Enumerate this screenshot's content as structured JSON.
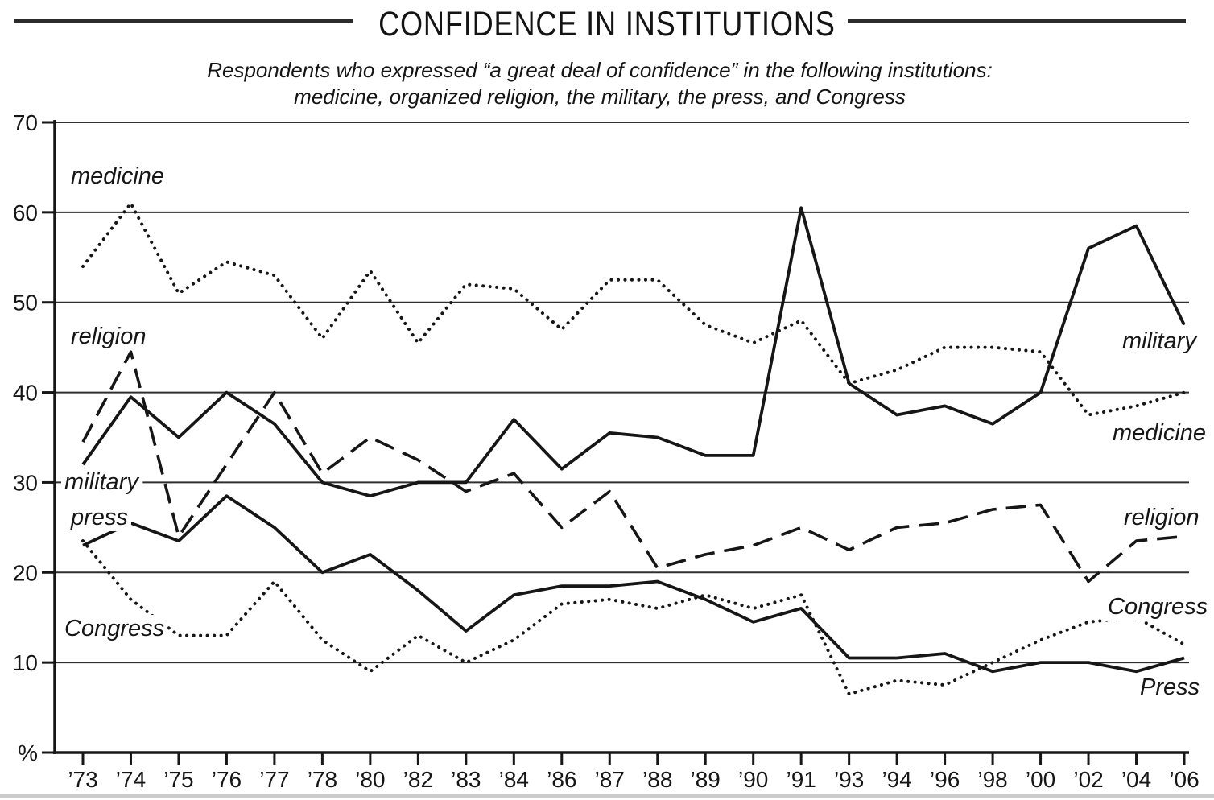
{
  "header": {
    "title": "CONFIDENCE IN INSTITUTIONS",
    "subtitle_line1": "Respondents who expressed “a great deal of confidence” in the following institutions:",
    "subtitle_line2": "medicine, organized religion, the military, the press, and Congress"
  },
  "chart_data": {
    "type": "line",
    "title": "CONFIDENCE IN INSTITUTIONS",
    "categories": [
      "’73",
      "’74",
      "’75",
      "’76",
      "’77",
      "’78",
      "’80",
      "’82",
      "’83",
      "’84",
      "’86",
      "’87",
      "’88",
      "’89",
      "’90",
      "’91",
      "’93",
      "’94",
      "’96",
      "’98",
      "’00",
      "’02",
      "’04",
      "’06"
    ],
    "series": [
      {
        "name": "medicine",
        "style": "dotted",
        "values": [
          54,
          61,
          51,
          54.5,
          53,
          46,
          53.5,
          45.5,
          52,
          51.5,
          47,
          52.5,
          52.5,
          47.5,
          45.5,
          48,
          41,
          42.5,
          45,
          45,
          44.5,
          37.5,
          38.5,
          40
        ]
      },
      {
        "name": "religion",
        "style": "dashed",
        "values": [
          34.5,
          44.5,
          24,
          32,
          40,
          31,
          35,
          32.5,
          29,
          31,
          25,
          29,
          20.5,
          22,
          23,
          25,
          22.5,
          25,
          25.5,
          27,
          27.5,
          19,
          23.5,
          24
        ]
      },
      {
        "name": "military",
        "style": "solid",
        "values": [
          32,
          39.5,
          35,
          40,
          36.5,
          30,
          28.5,
          30,
          30,
          37,
          31.5,
          35.5,
          35,
          33,
          33,
          60.5,
          41,
          37.5,
          38.5,
          36.5,
          40,
          56,
          58.5,
          47.5
        ]
      },
      {
        "name": "press",
        "style": "solid",
        "values": [
          23,
          25.5,
          23.5,
          28.5,
          25,
          20,
          22,
          18,
          13.5,
          17.5,
          18.5,
          18.5,
          19,
          17,
          14.5,
          16,
          10.5,
          10.5,
          11,
          9,
          10,
          10,
          9,
          10.5
        ]
      },
      {
        "name": "Congress",
        "style": "dotted",
        "values": [
          23.5,
          17,
          13,
          13,
          19,
          12.5,
          9,
          13,
          10,
          12.5,
          16.5,
          17,
          16,
          17.5,
          16,
          17.5,
          6.5,
          8,
          7.5,
          10,
          12.5,
          14.5,
          15,
          12
        ]
      }
    ],
    "y_ticks": [
      70,
      60,
      50,
      40,
      30,
      20,
      10
    ],
    "y_axis_unit_label": "%",
    "ylim": [
      0,
      70
    ],
    "grid": "horizontal",
    "legend_position": "inline-labels",
    "inline_labels": [
      {
        "id": "medicine-left",
        "series": "medicine",
        "text": "medicine"
      },
      {
        "id": "religion-left",
        "series": "religion",
        "text": "religion"
      },
      {
        "id": "military-left",
        "series": "military",
        "text": "military"
      },
      {
        "id": "press-left",
        "series": "press",
        "text": "press"
      },
      {
        "id": "congress-left",
        "series": "Congress",
        "text": "Congress"
      },
      {
        "id": "military-right",
        "series": "military",
        "text": "military"
      },
      {
        "id": "medicine-right",
        "series": "medicine",
        "text": "medicine"
      },
      {
        "id": "religion-right",
        "series": "religion",
        "text": "religion"
      },
      {
        "id": "congress-right",
        "series": "Congress",
        "text": "Congress"
      },
      {
        "id": "press-right",
        "series": "press",
        "text": "Press"
      }
    ]
  },
  "colors": {
    "ink": "#161616",
    "grid": "#2f2f2f",
    "background": "#ffffff"
  }
}
